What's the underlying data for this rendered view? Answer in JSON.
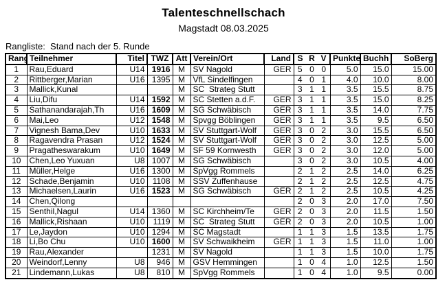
{
  "title": "Talenteschnellschach",
  "subtitle": "Magstadt 08.03.2025",
  "ranking_label": "Rangliste:  Stand nach der 5. Runde",
  "table": {
    "headers": {
      "rang": "Rang",
      "teilnehmer": "Teilnehmer",
      "titel": "Titel",
      "twz": "TWZ",
      "att": "Att",
      "verein": "Verein/Ort",
      "land": "Land",
      "s": "S",
      "r": "R",
      "v": "V",
      "punkte": "Punkte",
      "buchh": "Buchh",
      "soberg": "SoBerg"
    },
    "rows": [
      {
        "rang": "1",
        "teilnehmer": "Rau,Eduard",
        "titel": "U14",
        "twz": "1916",
        "twz_bold": true,
        "att": "M",
        "verein": "SV Nagold",
        "land": "GER",
        "s": "5",
        "r": "0",
        "v": "0",
        "punkte": "5.0",
        "buchh": "15.0",
        "soberg": "15.00"
      },
      {
        "rang": "2",
        "teilnehmer": "Rittberger,Marian",
        "titel": "U16",
        "twz": "1395",
        "twz_bold": false,
        "att": "M",
        "verein": "VfL Sindelfingen",
        "land": "",
        "s": "4",
        "r": "0",
        "v": "1",
        "punkte": "4.0",
        "buchh": "10.0",
        "soberg": "8.00"
      },
      {
        "rang": "3",
        "teilnehmer": "Mallick,Kunal",
        "titel": "",
        "twz": "",
        "twz_bold": false,
        "att": "M",
        "verein": "SC  Strateg Stutt",
        "land": "",
        "s": "3",
        "r": "1",
        "v": "1",
        "punkte": "3.5",
        "buchh": "15.5",
        "soberg": "8.75"
      },
      {
        "rang": "4",
        "teilnehmer": "Liu,Difu",
        "titel": "U14",
        "twz": "1592",
        "twz_bold": true,
        "att": "M",
        "verein": "SC Stetten a.d.F.",
        "land": "GER",
        "s": "3",
        "r": "1",
        "v": "1",
        "punkte": "3.5",
        "buchh": "15.0",
        "soberg": "8.25"
      },
      {
        "rang": "5",
        "teilnehmer": "Sathanandarajah,Th",
        "titel": "U16",
        "twz": "1609",
        "twz_bold": true,
        "att": "M",
        "verein": "SG Schwäbisch",
        "land": "GER",
        "s": "3",
        "r": "1",
        "v": "1",
        "punkte": "3.5",
        "buchh": "14.0",
        "soberg": "7.75"
      },
      {
        "rang": "6",
        "teilnehmer": "Mai,Leo",
        "titel": "U12",
        "twz": "1548",
        "twz_bold": true,
        "att": "M",
        "verein": "Spvgg Böblingen",
        "land": "GER",
        "s": "3",
        "r": "1",
        "v": "1",
        "punkte": "3.5",
        "buchh": "9.5",
        "soberg": "6.50"
      },
      {
        "rang": "7",
        "teilnehmer": "Vignesh Bama,Dev",
        "titel": "U10",
        "twz": "1633",
        "twz_bold": true,
        "att": "M",
        "verein": "SV Stuttgart-Wolf",
        "land": "GER",
        "s": "3",
        "r": "0",
        "v": "2",
        "punkte": "3.0",
        "buchh": "15.5",
        "soberg": "6.50"
      },
      {
        "rang": "8",
        "teilnehmer": "Ragavendra Prasan",
        "titel": "U12",
        "twz": "1524",
        "twz_bold": true,
        "att": "M",
        "verein": "SV Stuttgart-Wolf",
        "land": "GER",
        "s": "3",
        "r": "0",
        "v": "2",
        "punkte": "3.0",
        "buchh": "12.5",
        "soberg": "5.00"
      },
      {
        "rang": "9",
        "teilnehmer": "Pragatheswarakum",
        "titel": "U10",
        "twz": "1649",
        "twz_bold": true,
        "att": "M",
        "verein": "SF 59 Kornwesth",
        "land": "GER",
        "s": "3",
        "r": "0",
        "v": "2",
        "punkte": "3.0",
        "buchh": "12.0",
        "soberg": "5.00"
      },
      {
        "rang": "10",
        "teilnehmer": "Chen,Leo Yuxuan",
        "titel": "U8",
        "twz": "1007",
        "twz_bold": false,
        "att": "M",
        "verein": "SG Schwäbisch",
        "land": "",
        "s": "3",
        "r": "0",
        "v": "2",
        "punkte": "3.0",
        "buchh": "10.5",
        "soberg": "4.00"
      },
      {
        "rang": "11",
        "teilnehmer": "Müller,Helge",
        "titel": "U16",
        "twz": "1300",
        "twz_bold": false,
        "att": "M",
        "verein": "SpVgg Rommels",
        "land": "",
        "s": "2",
        "r": "1",
        "v": "2",
        "punkte": "2.5",
        "buchh": "14.0",
        "soberg": "6.25"
      },
      {
        "rang": "12",
        "teilnehmer": "Schade,Benjamin",
        "titel": "U10",
        "twz": "1108",
        "twz_bold": false,
        "att": "M",
        "verein": "SSV Zuffenhause",
        "land": "",
        "s": "2",
        "r": "1",
        "v": "2",
        "punkte": "2.5",
        "buchh": "12.5",
        "soberg": "4.75"
      },
      {
        "rang": "13",
        "teilnehmer": "Michaelsen,Laurin",
        "titel": "U16",
        "twz": "1523",
        "twz_bold": true,
        "att": "M",
        "verein": "SG Schwäbisch",
        "land": "GER",
        "s": "2",
        "r": "1",
        "v": "2",
        "punkte": "2.5",
        "buchh": "10.5",
        "soberg": "4.25"
      },
      {
        "rang": "14",
        "teilnehmer": "Chen,Qilong",
        "titel": "",
        "twz": "",
        "twz_bold": false,
        "att": "",
        "verein": "",
        "land": "",
        "s": "2",
        "r": "0",
        "v": "3",
        "punkte": "2.0",
        "buchh": "17.0",
        "soberg": "7.50"
      },
      {
        "rang": "15",
        "teilnehmer": "Senthil,Nagul",
        "titel": "U14",
        "twz": "1360",
        "twz_bold": false,
        "att": "M",
        "verein": "SC Kirchheim/Te",
        "land": "GER",
        "s": "2",
        "r": "0",
        "v": "3",
        "punkte": "2.0",
        "buchh": "11.5",
        "soberg": "1.50"
      },
      {
        "rang": "16",
        "teilnehmer": "Mallick,Rishaan",
        "titel": "U10",
        "twz": "1119",
        "twz_bold": false,
        "att": "M",
        "verein": "SC  Strateg Stutt",
        "land": "GER",
        "s": "2",
        "r": "0",
        "v": "3",
        "punkte": "2.0",
        "buchh": "10.5",
        "soberg": "1.00"
      },
      {
        "rang": "17",
        "teilnehmer": "Le,Jaydon",
        "titel": "U10",
        "twz": "1294",
        "twz_bold": false,
        "att": "M",
        "verein": "SC Magstadt",
        "land": "",
        "s": "1",
        "r": "1",
        "v": "3",
        "punkte": "1.5",
        "buchh": "13.5",
        "soberg": "1.75"
      },
      {
        "rang": "18",
        "teilnehmer": "Li,Bo Chu",
        "titel": "U10",
        "twz": "1600",
        "twz_bold": true,
        "att": "M",
        "verein": "SV Schwaikheim",
        "land": "GER",
        "s": "1",
        "r": "1",
        "v": "3",
        "punkte": "1.5",
        "buchh": "11.0",
        "soberg": "1.00"
      },
      {
        "rang": "19",
        "teilnehmer": "Rau,Alexander",
        "titel": "",
        "twz": "1231",
        "twz_bold": false,
        "att": "M",
        "verein": "SV Nagold",
        "land": "",
        "s": "1",
        "r": "1",
        "v": "3",
        "punkte": "1.5",
        "buchh": "10.0",
        "soberg": "1.75"
      },
      {
        "rang": "20",
        "teilnehmer": "Weindorf,Lenny",
        "titel": "U8",
        "twz": "946",
        "twz_bold": false,
        "att": "M",
        "verein": "GSV Hemmingen",
        "land": "",
        "s": "1",
        "r": "0",
        "v": "4",
        "punkte": "1.0",
        "buchh": "12.5",
        "soberg": "1.50"
      },
      {
        "rang": "21",
        "teilnehmer": "Lindemann,Lukas",
        "titel": "U8",
        "twz": "810",
        "twz_bold": false,
        "att": "M",
        "verein": "SpVgg Rommels",
        "land": "",
        "s": "1",
        "r": "0",
        "v": "4",
        "punkte": "1.0",
        "buchh": "9.5",
        "soberg": "0.00"
      }
    ]
  }
}
